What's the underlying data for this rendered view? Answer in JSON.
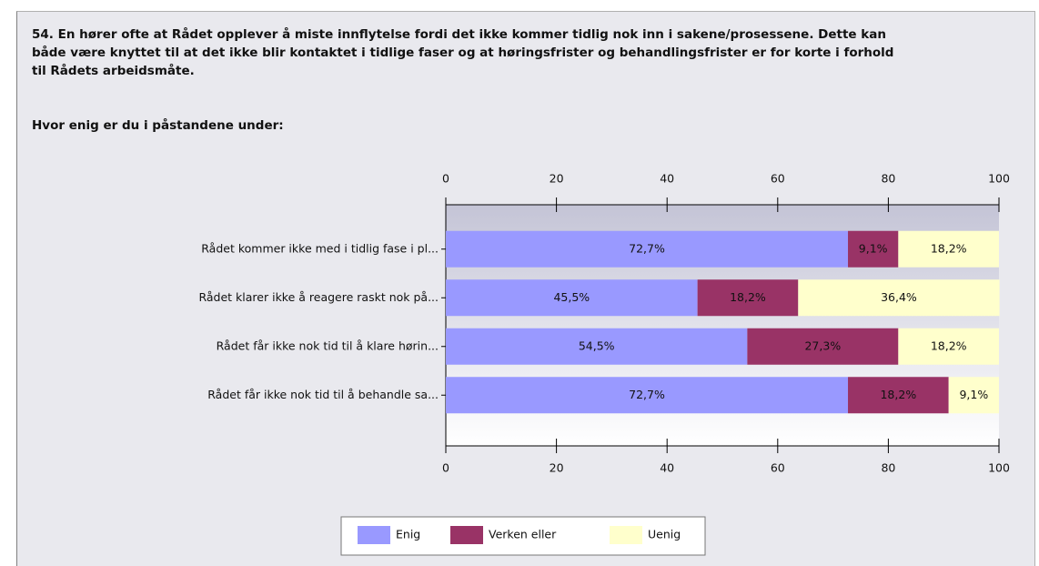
{
  "chart_data": {
    "type": "stacked-bar-horizontal",
    "title": "54. En hører ofte at Rådet opplever å miste innflytelse fordi det ikke kommer tidlig nok inn i sakene/prosessene. Dette kan både være knyttet til at det ikke blir kontaktet i tidlige faser og at høringsfrister og behandlingsfrister er for korte i forhold til Rådets arbeidsmåte.",
    "subtitle": "Hvor enig er du i påstandene under:",
    "categories": [
      "Rådet kommer ikke med i tidlig fase i pl...",
      "Rådet klarer ikke å reagere raskt nok på...",
      "Rådet får ikke nok tid til å klare hørin...",
      "Rådet får ikke nok tid til å behandle sa..."
    ],
    "series": [
      {
        "name": "Enig",
        "color": "#9999ff",
        "values": [
          72.7,
          45.5,
          54.5,
          72.7
        ],
        "value_labels": [
          "72,7%",
          "45,5%",
          "54,5%",
          "72,7%"
        ]
      },
      {
        "name": "Verken eller",
        "color": "#993366",
        "values": [
          9.1,
          18.2,
          27.3,
          18.2
        ],
        "value_labels": [
          "9,1%",
          "18,2%",
          "27,3%",
          "18,2%"
        ]
      },
      {
        "name": "Uenig",
        "color": "#ffffcc",
        "values": [
          18.2,
          36.4,
          18.2,
          9.1
        ],
        "value_labels": [
          "18,2%",
          "36,4%",
          "18,2%",
          "9,1%"
        ]
      }
    ],
    "xlim": [
      0,
      100
    ],
    "xticks": [
      0,
      20,
      40,
      60,
      80,
      100
    ],
    "legend": "bottom"
  }
}
